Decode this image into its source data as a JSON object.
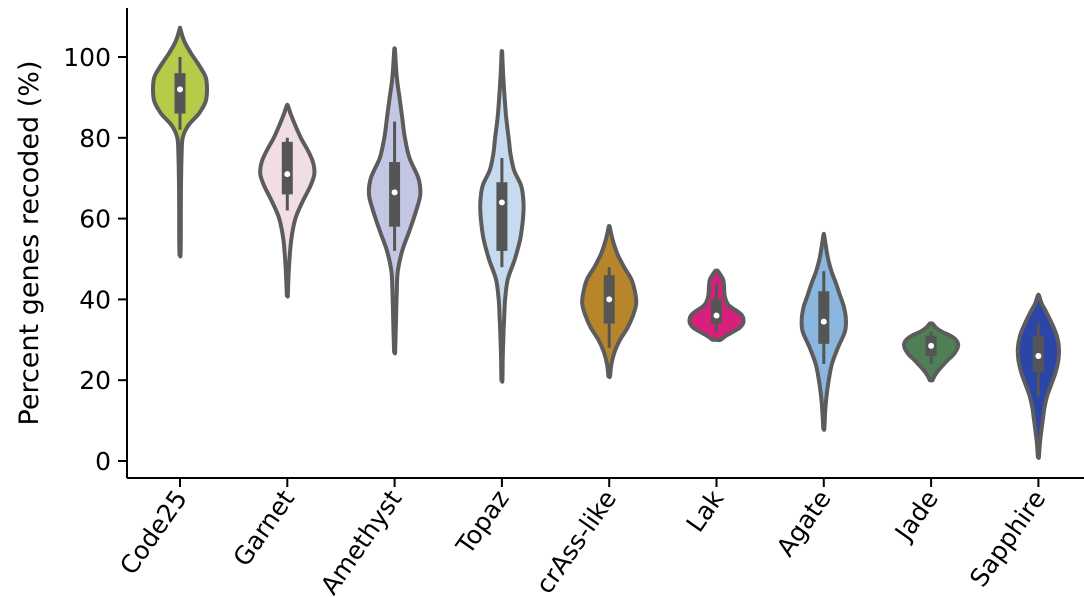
{
  "chart_data": {
    "type": "violin",
    "title": "",
    "xlabel": "",
    "ylabel": "Percent genes recoded (%)",
    "ylim": [
      -4,
      112
    ],
    "yticks": [
      0,
      20,
      40,
      60,
      80,
      100
    ],
    "grid": false,
    "categories": [
      "Code25",
      "Garnet",
      "Amethyst",
      "Topaz",
      "crAss-like",
      "Lak",
      "Agate",
      "Jade",
      "Sapphire"
    ],
    "colors": [
      "#b5cb4a",
      "#f1dde6",
      "#c4c7e4",
      "#c6dbef",
      "#b8862a",
      "#d91f7c",
      "#8ab6df",
      "#4f7f55",
      "#2c46a8"
    ],
    "violins": [
      {
        "name": "Code25",
        "min": 51,
        "max": 107,
        "q1": 86,
        "median": 92,
        "q3": 96,
        "whisker_low": 82,
        "whisker_high": 100,
        "profile": [
          [
            51,
            0.02
          ],
          [
            56,
            0.03
          ],
          [
            62,
            0.03
          ],
          [
            70,
            0.04
          ],
          [
            76,
            0.06
          ],
          [
            80,
            0.1
          ],
          [
            83,
            0.3
          ],
          [
            86,
            0.7
          ],
          [
            89,
            0.95
          ],
          [
            92,
            1.0
          ],
          [
            95,
            0.95
          ],
          [
            98,
            0.7
          ],
          [
            101,
            0.4
          ],
          [
            104,
            0.15
          ],
          [
            107,
            0.01
          ]
        ]
      },
      {
        "name": "Garnet",
        "min": 41,
        "max": 88,
        "q1": 66,
        "median": 71,
        "q3": 79,
        "whisker_low": 62,
        "whisker_high": 80,
        "profile": [
          [
            41,
            0.02
          ],
          [
            45,
            0.04
          ],
          [
            50,
            0.08
          ],
          [
            55,
            0.15
          ],
          [
            60,
            0.3
          ],
          [
            64,
            0.55
          ],
          [
            68,
            0.85
          ],
          [
            71,
            1.0
          ],
          [
            74,
            0.95
          ],
          [
            77,
            0.75
          ],
          [
            80,
            0.5
          ],
          [
            83,
            0.3
          ],
          [
            86,
            0.12
          ],
          [
            88,
            0.02
          ]
        ]
      },
      {
        "name": "Amethyst",
        "min": 27,
        "max": 102,
        "q1": 58,
        "median": 66.5,
        "q3": 74,
        "whisker_low": 52,
        "whisker_high": 84,
        "profile": [
          [
            27,
            0.02
          ],
          [
            32,
            0.04
          ],
          [
            37,
            0.06
          ],
          [
            42,
            0.08
          ],
          [
            47,
            0.12
          ],
          [
            52,
            0.28
          ],
          [
            57,
            0.55
          ],
          [
            62,
            0.8
          ],
          [
            66,
            0.95
          ],
          [
            70,
            0.88
          ],
          [
            75,
            0.55
          ],
          [
            80,
            0.38
          ],
          [
            85,
            0.28
          ],
          [
            90,
            0.18
          ],
          [
            95,
            0.08
          ],
          [
            100,
            0.03
          ],
          [
            102,
            0.01
          ]
        ]
      },
      {
        "name": "Topaz",
        "min": 20,
        "max": 101,
        "q1": 52,
        "median": 64,
        "q3": 69,
        "whisker_low": 48,
        "whisker_high": 75,
        "profile": [
          [
            20,
            0.02
          ],
          [
            25,
            0.03
          ],
          [
            30,
            0.05
          ],
          [
            35,
            0.08
          ],
          [
            40,
            0.12
          ],
          [
            45,
            0.22
          ],
          [
            50,
            0.48
          ],
          [
            55,
            0.68
          ],
          [
            60,
            0.78
          ],
          [
            64,
            0.8
          ],
          [
            68,
            0.72
          ],
          [
            72,
            0.45
          ],
          [
            76,
            0.32
          ],
          [
            80,
            0.25
          ],
          [
            85,
            0.16
          ],
          [
            90,
            0.1
          ],
          [
            95,
            0.05
          ],
          [
            101,
            0.01
          ]
        ]
      },
      {
        "name": "crAss-like",
        "min": 21,
        "max": 58,
        "q1": 34,
        "median": 40,
        "q3": 46,
        "whisker_low": 28,
        "whisker_high": 48,
        "profile": [
          [
            21,
            0.03
          ],
          [
            24,
            0.08
          ],
          [
            27,
            0.2
          ],
          [
            30,
            0.4
          ],
          [
            33,
            0.68
          ],
          [
            36,
            0.88
          ],
          [
            39,
            1.0
          ],
          [
            42,
            0.95
          ],
          [
            45,
            0.82
          ],
          [
            48,
            0.55
          ],
          [
            51,
            0.32
          ],
          [
            54,
            0.16
          ],
          [
            56,
            0.08
          ],
          [
            58,
            0.02
          ]
        ]
      },
      {
        "name": "Lak",
        "min": 30,
        "max": 47,
        "q1": 34,
        "median": 36,
        "q3": 40,
        "whisker_low": 32,
        "whisker_high": 44,
        "profile": [
          [
            30,
            0.15
          ],
          [
            31,
            0.35
          ],
          [
            32,
            0.62
          ],
          [
            33,
            0.86
          ],
          [
            34,
            0.98
          ],
          [
            35,
            1.0
          ],
          [
            36,
            0.95
          ],
          [
            37,
            0.78
          ],
          [
            38,
            0.55
          ],
          [
            39,
            0.4
          ],
          [
            41,
            0.3
          ],
          [
            43,
            0.28
          ],
          [
            45,
            0.24
          ],
          [
            47,
            0.05
          ]
        ]
      },
      {
        "name": "Agate",
        "min": 8,
        "max": 56,
        "q1": 29,
        "median": 34.5,
        "q3": 42,
        "whisker_low": 24,
        "whisker_high": 47,
        "profile": [
          [
            8,
            0.02
          ],
          [
            12,
            0.05
          ],
          [
            16,
            0.1
          ],
          [
            20,
            0.18
          ],
          [
            24,
            0.3
          ],
          [
            28,
            0.52
          ],
          [
            32,
            0.78
          ],
          [
            35,
            0.82
          ],
          [
            38,
            0.75
          ],
          [
            41,
            0.6
          ],
          [
            44,
            0.45
          ],
          [
            47,
            0.28
          ],
          [
            50,
            0.16
          ],
          [
            53,
            0.08
          ],
          [
            56,
            0.01
          ]
        ]
      },
      {
        "name": "Jade",
        "min": 20,
        "max": 34,
        "q1": 26,
        "median": 28.5,
        "q3": 31,
        "whisker_low": 24,
        "whisker_high": 32,
        "profile": [
          [
            20,
            0.05
          ],
          [
            21,
            0.12
          ],
          [
            22,
            0.22
          ],
          [
            23,
            0.34
          ],
          [
            24,
            0.48
          ],
          [
            25,
            0.62
          ],
          [
            26,
            0.78
          ],
          [
            27,
            0.9
          ],
          [
            28,
            0.98
          ],
          [
            29,
            1.0
          ],
          [
            30,
            0.92
          ],
          [
            31,
            0.72
          ],
          [
            32,
            0.4
          ],
          [
            33,
            0.18
          ],
          [
            34,
            0.05
          ]
        ]
      },
      {
        "name": "Sapphire",
        "min": 1,
        "max": 41,
        "q1": 22,
        "median": 26,
        "q3": 31,
        "whisker_low": 16,
        "whisker_high": 34,
        "profile": [
          [
            1,
            0.02
          ],
          [
            4,
            0.05
          ],
          [
            7,
            0.1
          ],
          [
            10,
            0.16
          ],
          [
            13,
            0.22
          ],
          [
            16,
            0.32
          ],
          [
            19,
            0.48
          ],
          [
            22,
            0.64
          ],
          [
            25,
            0.74
          ],
          [
            28,
            0.76
          ],
          [
            31,
            0.68
          ],
          [
            34,
            0.5
          ],
          [
            37,
            0.28
          ],
          [
            39,
            0.12
          ],
          [
            41,
            0.02
          ]
        ]
      }
    ],
    "style": {
      "outline_color": "#5c5c5c",
      "box_color": "#555555",
      "median_color": "#ffffff"
    }
  }
}
